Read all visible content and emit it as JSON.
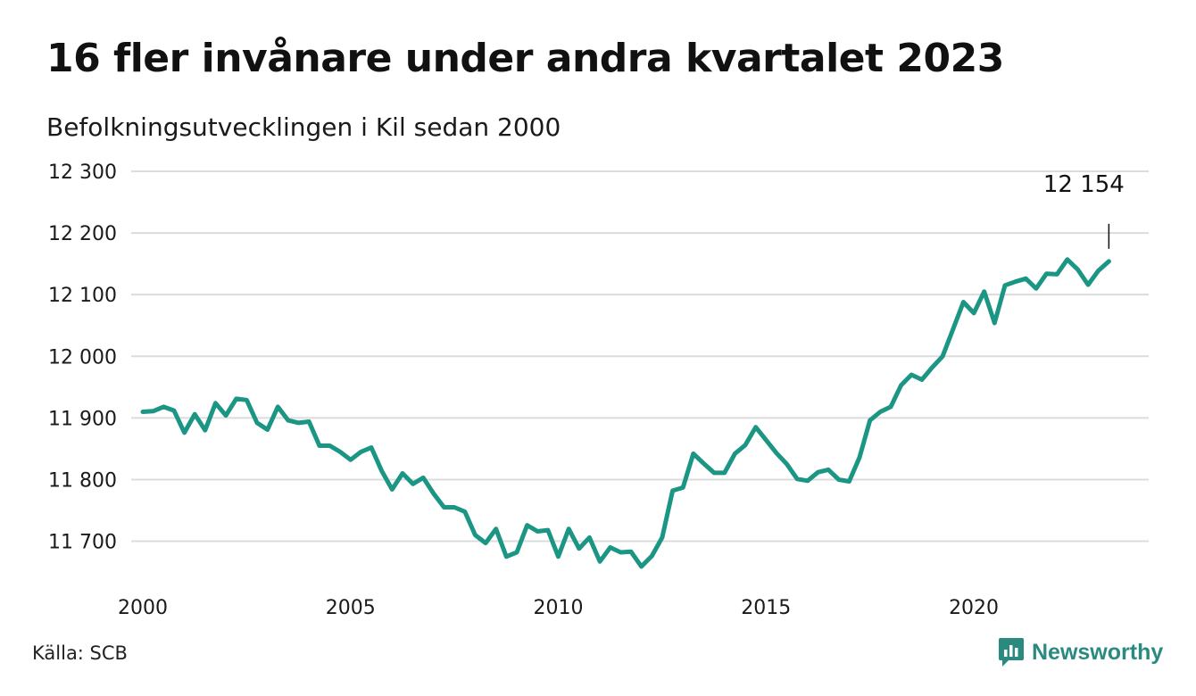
{
  "title": "16 fler invånare under andra kvartalet 2023",
  "subtitle": "Befolkningsutvecklingen i Kil sedan 2000",
  "source": "Källa: SCB",
  "brand": "Newsworthy",
  "colors": {
    "line": "#1b9584",
    "grid": "#dcdcdc",
    "brand": "#2a8a80"
  },
  "chart_data": {
    "type": "line",
    "x_unit": "year",
    "xlim": [
      2000,
      2023.5
    ],
    "ylim": [
      11640,
      12300
    ],
    "y_ticks": [
      11700,
      11800,
      11900,
      12000,
      12100,
      12200,
      12300
    ],
    "y_tick_labels": [
      "11 700",
      "11 800",
      "11 900",
      "12 000",
      "12 100",
      "12 200",
      "12 300"
    ],
    "x_ticks": [
      2000,
      2005,
      2010,
      2015,
      2020
    ],
    "x_tick_labels": [
      "2000",
      "2005",
      "2010",
      "2015",
      "2020"
    ],
    "grid": true,
    "legend": "none",
    "annotation": {
      "x": 2023.25,
      "y": 12154,
      "label": "12 154"
    },
    "series": [
      {
        "x": [
          2000.0,
          2000.25,
          2000.5,
          2000.75,
          2001.0,
          2001.25,
          2001.5,
          2001.75,
          2002.0,
          2002.25,
          2002.5,
          2002.75,
          2003.0,
          2003.25,
          2003.5,
          2003.75,
          2004.0,
          2004.25,
          2004.5,
          2004.75,
          2005.0,
          2005.25,
          2005.5,
          2005.75,
          2006.0,
          2006.25,
          2006.5,
          2006.75,
          2007.0,
          2007.25,
          2007.5,
          2007.75,
          2008.0,
          2008.25,
          2008.5,
          2008.75,
          2009.0,
          2009.25,
          2009.5,
          2009.75,
          2010.0,
          2010.25,
          2010.5,
          2010.75,
          2011.0,
          2011.25,
          2011.5,
          2011.75,
          2012.0,
          2012.25,
          2012.5,
          2012.75,
          2013.0,
          2013.25,
          2013.5,
          2013.75,
          2014.0,
          2014.25,
          2014.5,
          2014.75,
          2015.0,
          2015.25,
          2015.5,
          2015.75,
          2016.0,
          2016.25,
          2016.5,
          2016.75,
          2017.0,
          2017.25,
          2017.5,
          2017.75,
          2018.0,
          2018.25,
          2018.5,
          2018.75,
          2019.0,
          2019.25,
          2019.5,
          2019.75,
          2020.0,
          2020.25,
          2020.5,
          2020.75,
          2021.0,
          2021.25,
          2021.5,
          2021.75,
          2022.0,
          2022.25,
          2022.5,
          2022.75,
          2023.0,
          2023.25
        ],
        "y": [
          11910,
          11911,
          11918,
          11912,
          11876,
          11906,
          11880,
          11924,
          11904,
          11931,
          11929,
          11892,
          11881,
          11918,
          11896,
          11892,
          11894,
          11855,
          11855,
          11845,
          11832,
          11845,
          11852,
          11814,
          11784,
          11810,
          11793,
          11803,
          11777,
          11755,
          11755,
          11748,
          11710,
          11697,
          11720,
          11675,
          11682,
          11726,
          11716,
          11718,
          11675,
          11720,
          11688,
          11706,
          11667,
          11690,
          11682,
          11683,
          11659,
          11676,
          11706,
          11782,
          11787,
          11842,
          11826,
          11811,
          11811,
          11842,
          11856,
          11885,
          11864,
          11843,
          11825,
          11801,
          11798,
          11812,
          11816,
          11800,
          11797,
          11836,
          11896,
          11910,
          11918,
          11953,
          11970,
          11962,
          11982,
          12000,
          12044,
          12088,
          12070,
          12105,
          12054,
          12115,
          12121,
          12126,
          12110,
          12134,
          12133,
          12157,
          12141,
          12116,
          12139,
          12154
        ]
      }
    ]
  }
}
